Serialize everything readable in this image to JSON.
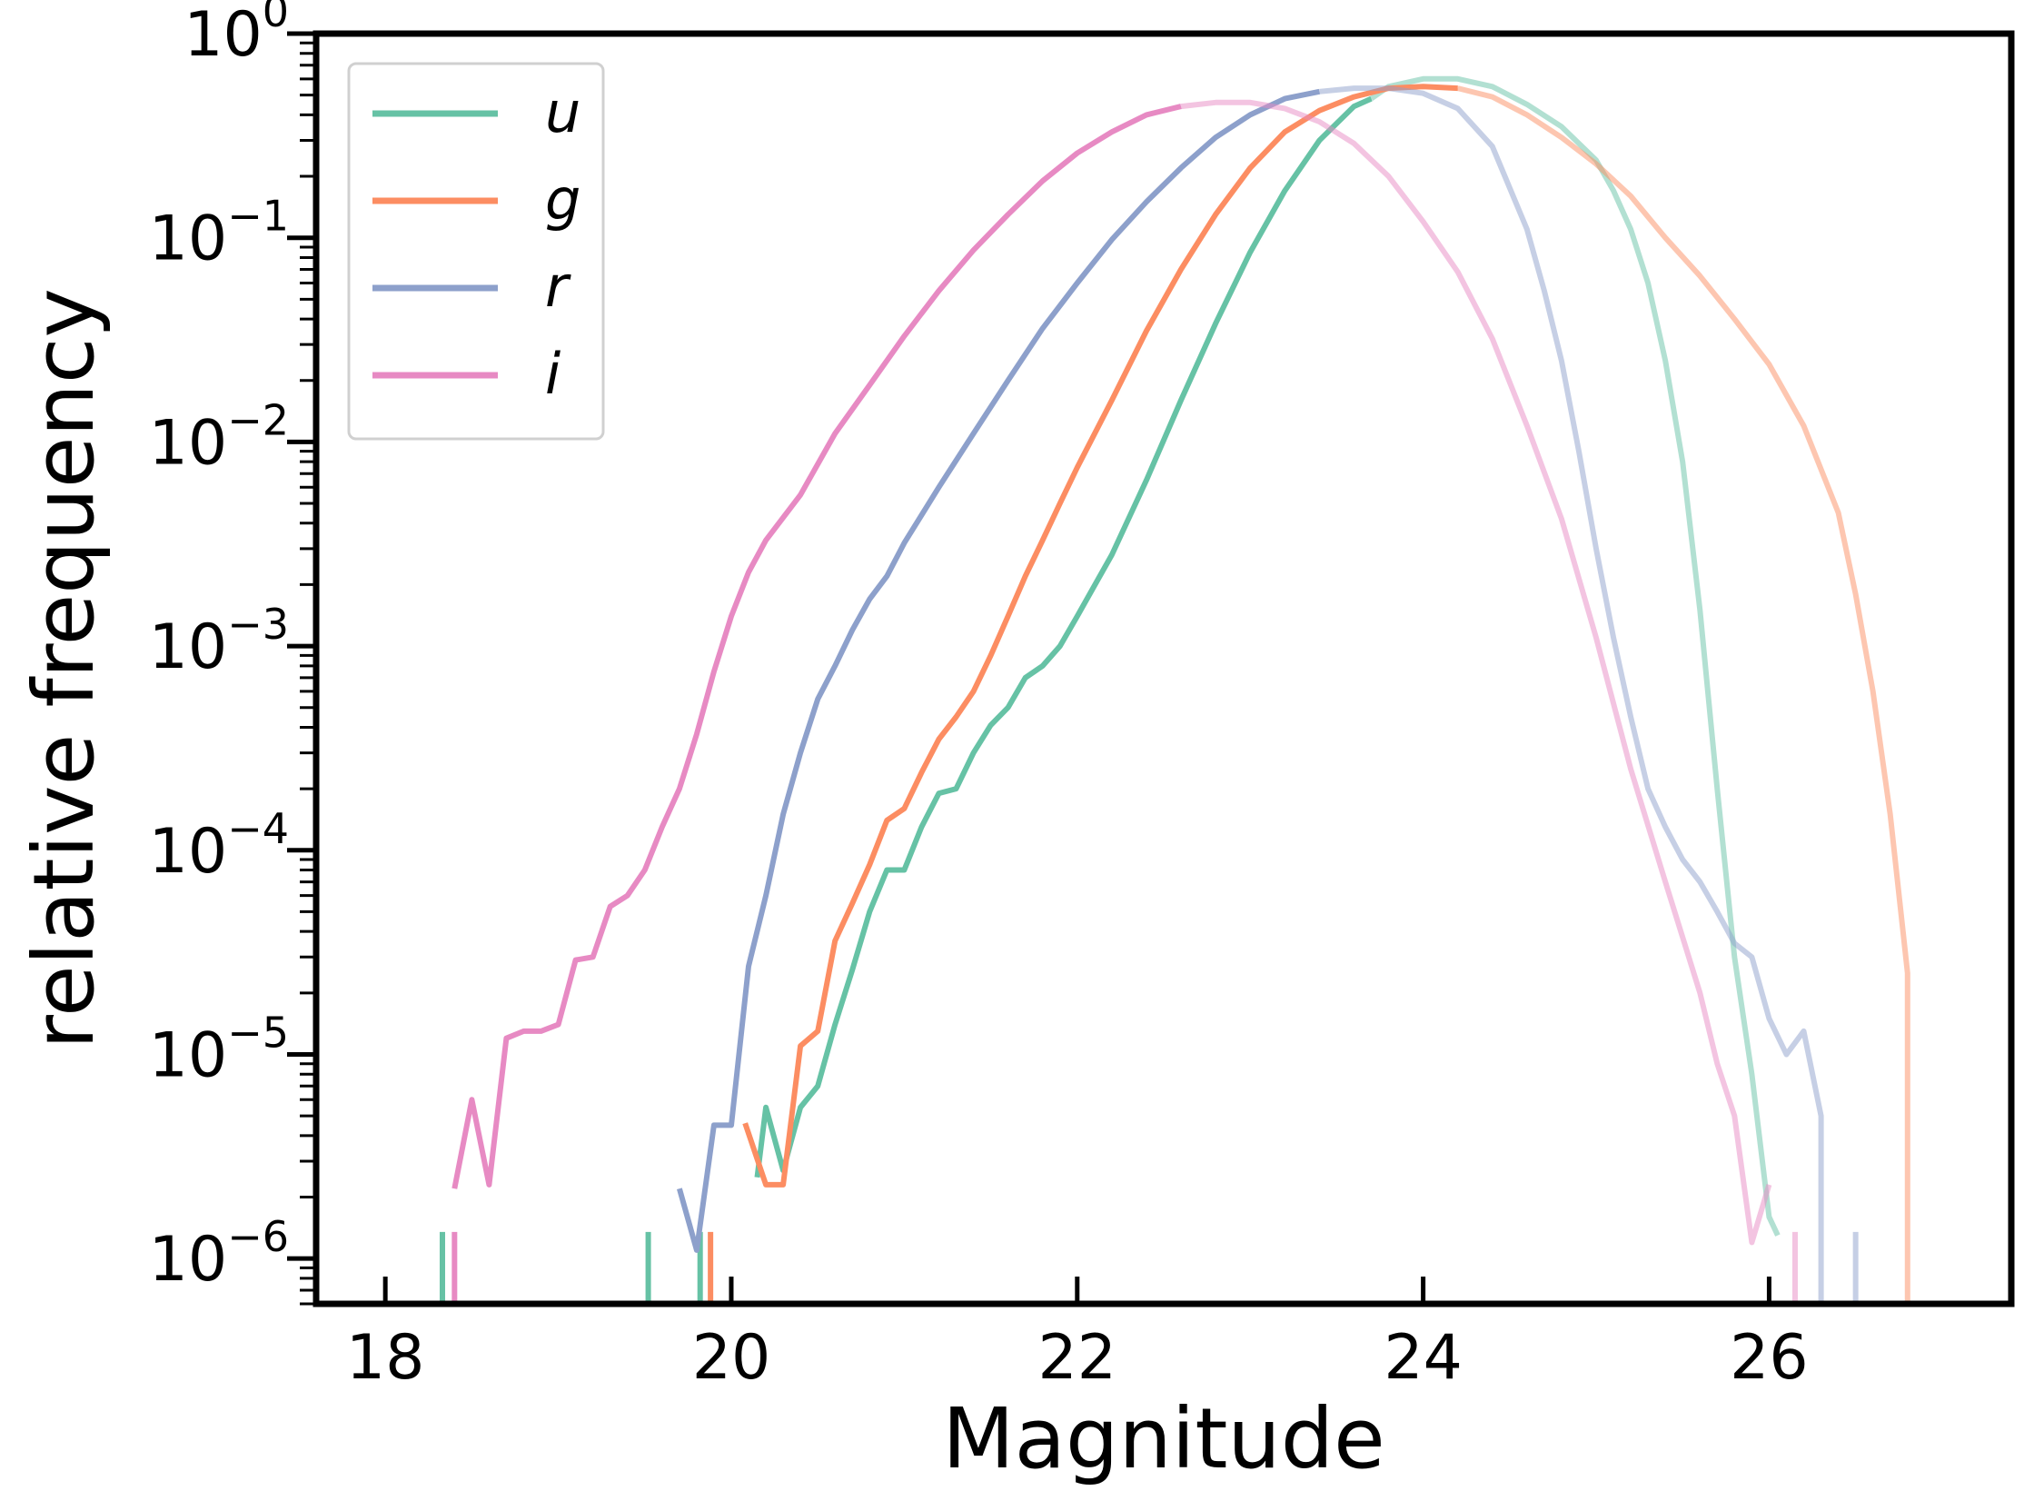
{
  "chart_data": {
    "type": "line",
    "title": "",
    "xlabel": "Magnitude",
    "ylabel": "relative frequency",
    "xlim": [
      17.6,
      27.4
    ],
    "ylim": [
      6e-07,
      1.0
    ],
    "yscale": "log",
    "xticks": [
      18,
      20,
      22,
      24,
      26
    ],
    "xtick_labels": [
      "18",
      "20",
      "22",
      "24",
      "26"
    ],
    "yticks": [
      {
        "value": 1e-06,
        "base": "10",
        "exp": "−6"
      },
      {
        "value": 1e-05,
        "base": "10",
        "exp": "−5"
      },
      {
        "value": 0.0001,
        "base": "10",
        "exp": "−4"
      },
      {
        "value": 0.001,
        "base": "10",
        "exp": "−3"
      },
      {
        "value": 0.01,
        "base": "10",
        "exp": "−2"
      },
      {
        "value": 0.1,
        "base": "10",
        "exp": "−1"
      },
      {
        "value": 1,
        "base": "10",
        "exp": "0"
      }
    ],
    "grid": false,
    "legend_position": "top-left",
    "series": [
      {
        "name": "u",
        "color": "#66c2a5",
        "fade_after": 23.7,
        "spikes": [
          18.33,
          19.52,
          19.82
        ],
        "x": [
          20.15,
          20.2,
          20.3,
          20.4,
          20.5,
          20.6,
          20.7,
          20.8,
          20.9,
          21.0,
          21.1,
          21.2,
          21.3,
          21.4,
          21.5,
          21.6,
          21.7,
          21.8,
          21.9,
          22.0,
          22.2,
          22.4,
          22.6,
          22.8,
          23.0,
          23.2,
          23.4,
          23.6,
          23.7,
          23.8,
          24.0,
          24.2,
          24.4,
          24.6,
          24.8,
          25.0,
          25.1,
          25.2,
          25.3,
          25.4,
          25.5,
          25.6,
          25.7,
          25.8,
          25.9,
          26.0,
          26.05
        ],
        "y": [
          2.5e-06,
          5.5e-06,
          2.7e-06,
          5.5e-06,
          7e-06,
          1.4e-05,
          2.6e-05,
          5e-05,
          8e-05,
          8e-05,
          0.00013,
          0.00019,
          0.0002,
          0.0003,
          0.00041,
          0.0005,
          0.0007,
          0.0008,
          0.001,
          0.0014,
          0.0028,
          0.0065,
          0.016,
          0.038,
          0.085,
          0.17,
          0.3,
          0.44,
          0.48,
          0.55,
          0.6,
          0.6,
          0.55,
          0.45,
          0.35,
          0.24,
          0.17,
          0.11,
          0.06,
          0.025,
          0.008,
          0.0015,
          0.0002,
          3e-05,
          8e-06,
          1.6e-06,
          1.3e-06
        ]
      },
      {
        "name": "g",
        "color": "#fc8d62",
        "fade_after": 24.2,
        "spikes": [
          19.88
        ],
        "x": [
          20.08,
          20.2,
          20.3,
          20.4,
          20.5,
          20.6,
          20.7,
          20.8,
          20.9,
          21.0,
          21.1,
          21.2,
          21.3,
          21.4,
          21.5,
          21.6,
          21.7,
          21.8,
          21.9,
          22.0,
          22.2,
          22.4,
          22.6,
          22.8,
          23.0,
          23.2,
          23.4,
          23.6,
          23.8,
          24.0,
          24.2,
          24.4,
          24.6,
          24.8,
          25.0,
          25.2,
          25.4,
          25.6,
          25.8,
          26.0,
          26.2,
          26.4,
          26.5,
          26.6,
          26.7,
          26.8,
          26.8
        ],
        "y": [
          4.6e-06,
          2.3e-06,
          2.3e-06,
          1.1e-05,
          1.3e-05,
          3.6e-05,
          5.5e-05,
          8.5e-05,
          0.00014,
          0.00016,
          0.00024,
          0.00035,
          0.00045,
          0.0006,
          0.0009,
          0.0014,
          0.0022,
          0.0033,
          0.005,
          0.0075,
          0.016,
          0.035,
          0.07,
          0.13,
          0.22,
          0.33,
          0.42,
          0.49,
          0.54,
          0.55,
          0.54,
          0.49,
          0.4,
          0.31,
          0.23,
          0.16,
          0.1,
          0.065,
          0.04,
          0.024,
          0.012,
          0.0045,
          0.0018,
          0.0006,
          0.00015,
          2.5e-05,
          6e-07
        ]
      },
      {
        "name": "r",
        "color": "#8da0cb",
        "fade_after": 23.4,
        "spikes": [
          26.5
        ],
        "x": [
          19.7,
          19.8,
          19.9,
          20.0,
          20.1,
          20.2,
          20.3,
          20.4,
          20.5,
          20.6,
          20.7,
          20.8,
          20.9,
          21.0,
          21.2,
          21.4,
          21.6,
          21.8,
          22.0,
          22.2,
          22.4,
          22.6,
          22.8,
          23.0,
          23.2,
          23.4,
          23.6,
          23.8,
          24.0,
          24.2,
          24.4,
          24.6,
          24.7,
          24.8,
          24.9,
          25.0,
          25.1,
          25.2,
          25.3,
          25.4,
          25.5,
          25.6,
          25.7,
          25.8,
          25.9,
          26.0,
          26.1,
          26.2,
          26.3,
          26.3
        ],
        "y": [
          2.2e-06,
          1.1e-06,
          4.5e-06,
          4.5e-06,
          2.7e-05,
          6e-05,
          0.00015,
          0.0003,
          0.00055,
          0.0008,
          0.0012,
          0.0017,
          0.0022,
          0.0032,
          0.006,
          0.011,
          0.02,
          0.036,
          0.06,
          0.098,
          0.15,
          0.22,
          0.31,
          0.4,
          0.48,
          0.52,
          0.54,
          0.54,
          0.51,
          0.43,
          0.28,
          0.11,
          0.055,
          0.025,
          0.009,
          0.003,
          0.0011,
          0.00045,
          0.0002,
          0.00013,
          9e-05,
          7e-05,
          5e-05,
          3.5e-05,
          3e-05,
          1.5e-05,
          1e-05,
          1.3e-05,
          5e-06,
          6e-07
        ]
      },
      {
        "name": "i",
        "color": "#e78ac3",
        "fade_after": 22.7,
        "spikes": [
          18.4,
          26.15
        ],
        "x": [
          18.4,
          18.5,
          18.6,
          18.7,
          18.8,
          18.9,
          19.0,
          19.1,
          19.2,
          19.3,
          19.4,
          19.5,
          19.6,
          19.7,
          19.8,
          19.9,
          20.0,
          20.1,
          20.2,
          20.4,
          20.6,
          20.8,
          21.0,
          21.2,
          21.4,
          21.6,
          21.8,
          22.0,
          22.2,
          22.4,
          22.6,
          22.8,
          23.0,
          23.2,
          23.4,
          23.6,
          23.8,
          24.0,
          24.2,
          24.4,
          24.6,
          24.8,
          25.0,
          25.2,
          25.4,
          25.6,
          25.7,
          25.8,
          25.9,
          26.0
        ],
        "y": [
          2.2e-06,
          6e-06,
          2.3e-06,
          1.2e-05,
          1.3e-05,
          1.3e-05,
          1.4e-05,
          2.9e-05,
          3e-05,
          5.3e-05,
          6e-05,
          8e-05,
          0.00013,
          0.0002,
          0.00037,
          0.00075,
          0.0014,
          0.0023,
          0.0033,
          0.0055,
          0.011,
          0.019,
          0.033,
          0.055,
          0.087,
          0.13,
          0.19,
          0.26,
          0.33,
          0.4,
          0.44,
          0.46,
          0.46,
          0.43,
          0.37,
          0.29,
          0.2,
          0.12,
          0.068,
          0.032,
          0.012,
          0.0042,
          0.0011,
          0.00025,
          7e-05,
          2e-05,
          9e-06,
          5e-06,
          1.2e-06,
          2.3e-06
        ]
      }
    ]
  }
}
